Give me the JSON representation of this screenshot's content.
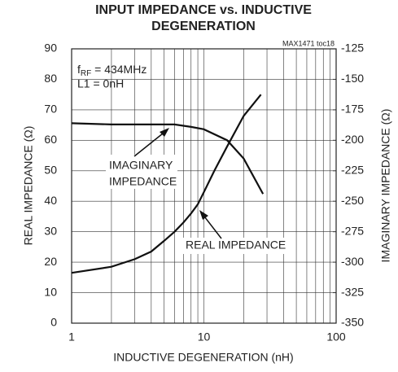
{
  "chart_data": {
    "type": "line",
    "title": [
      "INPUT IMPEDANCE vs. INDUCTIVE",
      "DEGENERATION"
    ],
    "watermark": "MAX1471 toc18",
    "xlabel": "INDUCTIVE DEGENERATION (nH)",
    "ylabel": "REAL IMPEDANCE (Ω)",
    "y2label": "IMAGINARY IMPEDANCE (Ω)",
    "conditions": {
      "symbol": "f",
      "subscript": "RF",
      "rest": " = 434MHz",
      "line2": "L1 = 0nH"
    },
    "annotations": {
      "imaginary": [
        "IMAGINARY",
        "IMPEDANCE"
      ],
      "real": "REAL IMPEDANCE"
    },
    "xscale": "log",
    "xlim": [
      1,
      100
    ],
    "xticks": [
      1,
      10,
      100
    ],
    "xminor": [
      2,
      3,
      4,
      5,
      6,
      7,
      8,
      9,
      20,
      30,
      40,
      50,
      60,
      70,
      80,
      90
    ],
    "ylim": [
      0,
      90
    ],
    "yticks": [
      0,
      10,
      20,
      30,
      40,
      50,
      60,
      70,
      80,
      90
    ],
    "y2lim": [
      -350,
      -125
    ],
    "y2ticks": [
      -350,
      -325,
      -300,
      -275,
      -250,
      -225,
      -200,
      -175,
      -150,
      -125
    ],
    "grid": true,
    "series": [
      {
        "name": "REAL IMPEDANCE",
        "color": "#111",
        "axis": "y",
        "x": [
          1,
          2,
          3,
          4,
          5,
          6,
          7,
          8,
          9,
          10,
          12,
          15,
          20,
          27
        ],
        "values": [
          16.5,
          18.5,
          21,
          23.5,
          27,
          30,
          33,
          36,
          39,
          43,
          50,
          58,
          68,
          75
        ]
      },
      {
        "name": "IMAGINARY IMPEDANCE",
        "color": "#111",
        "axis": "y2",
        "x": [
          1,
          2,
          3,
          4,
          5,
          6,
          8,
          10,
          15,
          20,
          28
        ],
        "values": [
          -186,
          -187,
          -187,
          -187,
          -187,
          -187,
          -189,
          -191,
          -200,
          -215,
          -244
        ]
      }
    ]
  }
}
